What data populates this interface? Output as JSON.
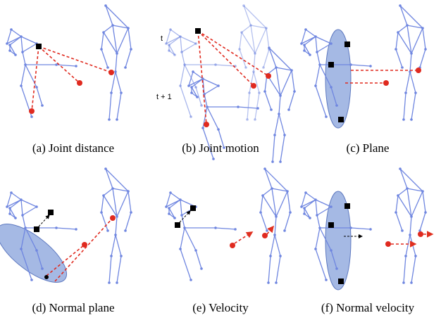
{
  "panels": [
    {
      "caption": "(a) Joint distance"
    },
    {
      "caption": "(b) Joint motion",
      "time_labels": [
        "t",
        "t + 1"
      ]
    },
    {
      "caption": "(c) Plane"
    },
    {
      "caption": "(d) Normal plane"
    },
    {
      "caption": "(e) Velocity"
    },
    {
      "caption": "(f) Normal velocity"
    }
  ]
}
